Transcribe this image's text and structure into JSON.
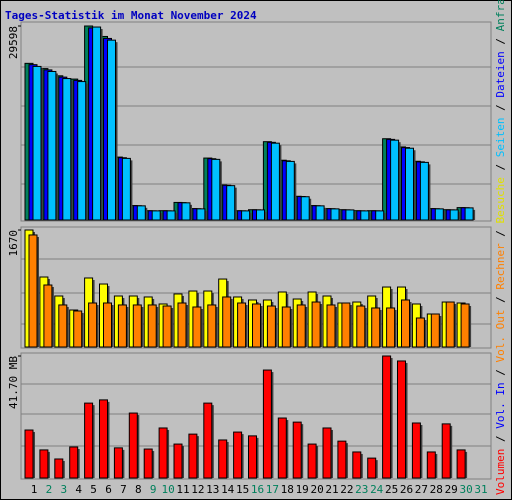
{
  "chart_data": {
    "type": "bar",
    "title": "Tages-Statistik im Monat November 2024",
    "legend_separator": " / ",
    "categories": [
      "1",
      "2",
      "3",
      "4",
      "5",
      "6",
      "7",
      "8",
      "9",
      "10",
      "11",
      "12",
      "13",
      "14",
      "15",
      "16",
      "17",
      "18",
      "19",
      "20",
      "21",
      "22",
      "23",
      "24",
      "25",
      "26",
      "27",
      "28",
      "29",
      "30",
      "31"
    ],
    "category_colors": [
      "#000000",
      "#00805c",
      "#00805c",
      "#000000",
      "#000000",
      "#000000",
      "#000000",
      "#000000",
      "#00805c",
      "#00805c",
      "#000000",
      "#000000",
      "#000000",
      "#000000",
      "#000000",
      "#00805c",
      "#00805c",
      "#000000",
      "#000000",
      "#000000",
      "#000000",
      "#000000",
      "#00805c",
      "#00805c",
      "#000000",
      "#000000",
      "#000000",
      "#000000",
      "#000000",
      "#00805c",
      "#00805c"
    ],
    "panels": [
      {
        "ylim": [
          0,
          29598
        ],
        "yticks": [
          29598
        ],
        "series": [
          {
            "name": "Anfragen",
            "color": "#00805c",
            "values": [
              23900,
              23100,
              22000,
              21500,
              29598,
              28000,
              9600,
              2200,
              1420,
              1420,
              2680,
              1740,
              9450,
              5350,
              1420,
              1570,
              11950,
              9120,
              3620,
              2200,
              1740,
              1570,
              1420,
              1420,
              12400,
              11150,
              8960,
              1740,
              1570,
              1890,
              0
            ]
          },
          {
            "name": "Dateien",
            "color": "#0000ff",
            "values": [
              23700,
              22900,
              21800,
              21300,
              29300,
              27700,
              9500,
              2180,
              1400,
              1400,
              2650,
              1720,
              9350,
              5300,
              1400,
              1550,
              11850,
              9030,
              3580,
              2180,
              1720,
              1550,
              1400,
              1400,
              12300,
              11050,
              8870,
              1720,
              1550,
              1870,
              0
            ]
          },
          {
            "name": "Seiten",
            "color": "#00c0ff",
            "values": [
              23430,
              22660,
              21580,
              21120,
              29440,
              27440,
              9400,
              2160,
              1390,
              1390,
              2620,
              1700,
              9250,
              5240,
              1390,
              1540,
              11720,
              8940,
              3550,
              2160,
              1700,
              1540,
              1390,
              1390,
              12180,
              10950,
              8790,
              1700,
              1540,
              1850,
              0
            ]
          }
        ]
      },
      {
        "ylim": [
          0,
          1670
        ],
        "yticks": [
          1670
        ],
        "series": [
          {
            "name": "Besuche",
            "color": "#ffff00",
            "values": [
              1670,
              999,
              728,
              528,
              985,
              899,
              728,
              728,
              714,
              614,
              757,
              799,
              799,
              970,
              714,
              671,
              671,
              785,
              685,
              785,
              728,
              628,
              642,
              728,
              856,
              856,
              614,
              471,
              642,
              628,
              0
            ]
          },
          {
            "name": "Rechner",
            "color": "#ff8000",
            "values": [
              1599,
              885,
              600,
              514,
              628,
              628,
              600,
              600,
              600,
              585,
              628,
              571,
              600,
              714,
              628,
              614,
              585,
              571,
              600,
              642,
              600,
              628,
              585,
              557,
              557,
              671,
              414,
              471,
              642,
              614,
              0
            ]
          }
        ]
      },
      {
        "ylim": [
          0,
          41.7
        ],
        "yticks": [
          {
            "value": 41.7,
            "label": "41.70 MB"
          }
        ],
        "legend": [
          {
            "name": "Vol. Out",
            "color": "#ff8000"
          },
          {
            "name": "Vol. In",
            "color": "#0000ff"
          }
        ],
        "series": [
          {
            "name": "Volumen",
            "color": "#ff0000",
            "values": [
              16.4,
              9.6,
              6.5,
              10.6,
              25.6,
              26.7,
              10.3,
              22.2,
              9.9,
              17.1,
              11.6,
              15.0,
              25.6,
              13.0,
              15.7,
              14.4,
              36.9,
              20.5,
              19.1,
              11.6,
              17.1,
              12.6,
              8.9,
              6.8,
              41.7,
              40.0,
              18.8,
              8.9,
              18.5,
              9.6,
              0
            ]
          }
        ]
      }
    ]
  }
}
